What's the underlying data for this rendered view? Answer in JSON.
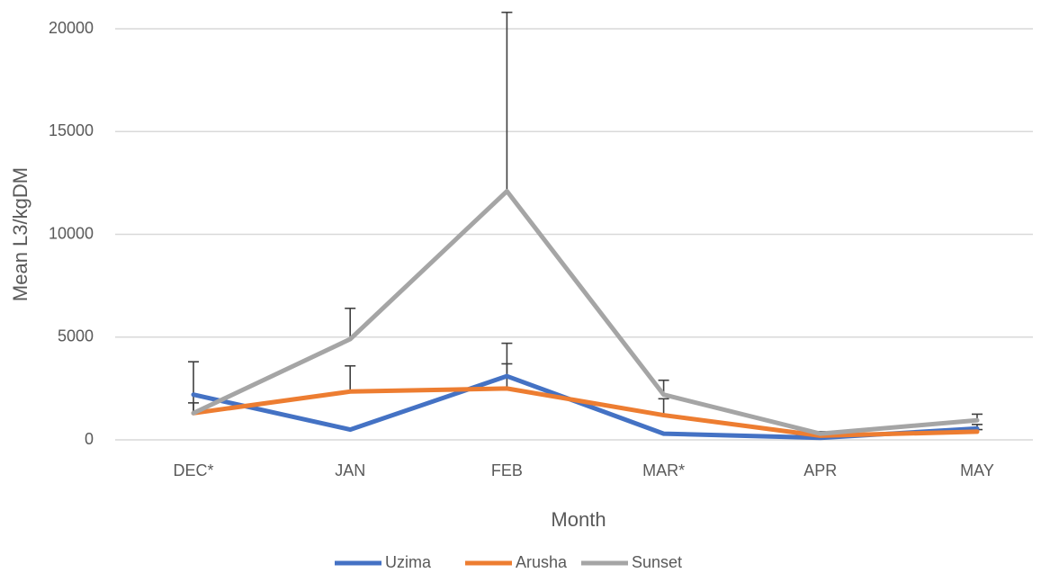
{
  "chart_data": {
    "type": "line",
    "categories": [
      "DEC*",
      "JAN",
      "FEB",
      "MAR*",
      "APR",
      "MAY"
    ],
    "xlabel": "Month",
    "ylabel": "Mean L3/kgDM",
    "ylim": [
      0,
      20000
    ],
    "yticks": [
      0,
      5000,
      10000,
      15000,
      20000
    ],
    "grid": true,
    "legend_position": "bottom",
    "series": [
      {
        "name": "Uzima",
        "color": "#4472c4",
        "values": [
          2200,
          500,
          3100,
          300,
          100,
          550
        ],
        "error_upper": [
          null,
          null,
          4700,
          null,
          null,
          750
        ]
      },
      {
        "name": "Arusha",
        "color": "#ed7d31",
        "values": [
          1300,
          2350,
          2500,
          1200,
          200,
          400
        ],
        "error_upper": [
          1800,
          3600,
          3700,
          2000,
          250,
          500
        ]
      },
      {
        "name": "Sunset",
        "color": "#a5a5a5",
        "values": [
          1300,
          4900,
          12100,
          2200,
          300,
          950
        ],
        "error_upper": [
          3800,
          6400,
          20800,
          2900,
          400,
          1250
        ]
      }
    ]
  }
}
